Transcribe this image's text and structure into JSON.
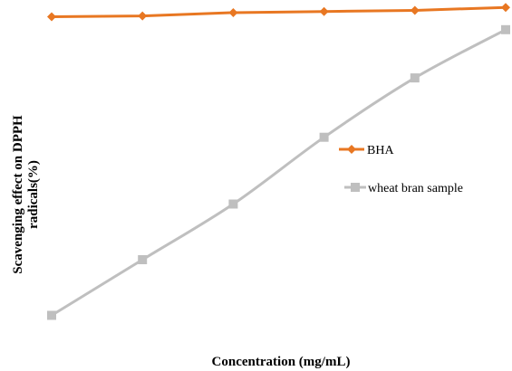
{
  "chart_data": {
    "type": "line",
    "title": "",
    "xlabel": "Concentration (mg/mL)",
    "ylabel_line1": "Scavenging effect on DPPH",
    "ylabel_line2": "radicals(%)",
    "x": [
      1,
      2,
      3,
      4,
      5,
      6
    ],
    "ylim": [
      0,
      100
    ],
    "grid": false,
    "legend_position": "center-right",
    "series": [
      {
        "name": "BHA",
        "values": [
          95.5,
          95.7,
          96.6,
          96.9,
          97.2,
          98.0
        ],
        "color": "#E87722",
        "marker": "diamond"
      },
      {
        "name": "wheat bran sample",
        "values": [
          15,
          30,
          45,
          63,
          79,
          92
        ],
        "color": "#BFBFBF",
        "marker": "square"
      }
    ]
  }
}
